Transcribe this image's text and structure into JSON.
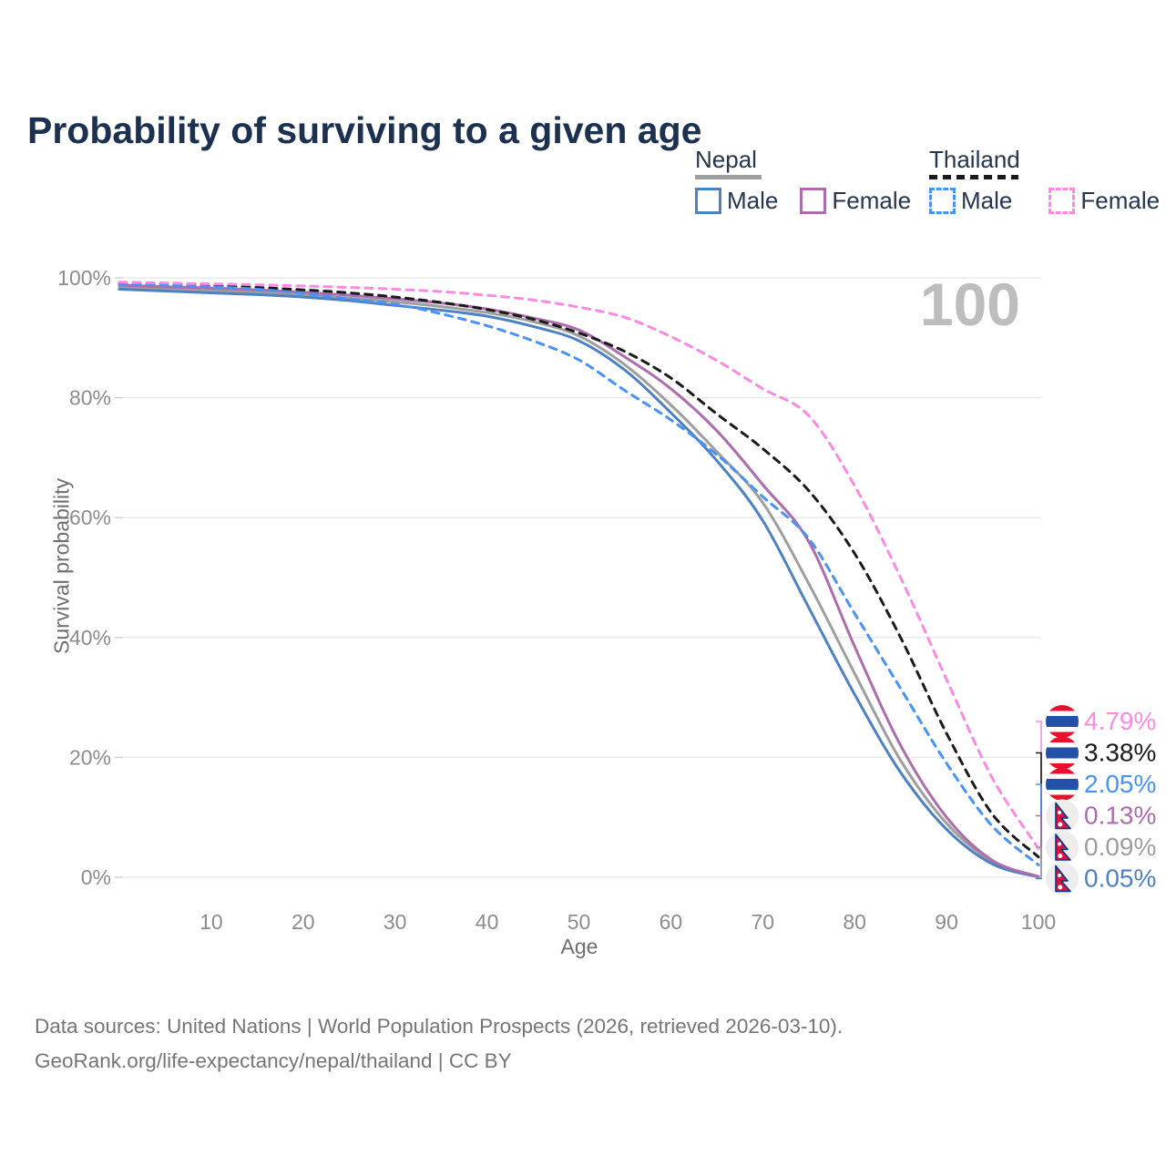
{
  "title": "Probability of surviving to a given age",
  "watermark": "100",
  "legend": {
    "groups": [
      {
        "country": "Nepal",
        "line_style": "solid",
        "underline_color": "#9e9e9e",
        "items": [
          {
            "label": "Male",
            "color": "#4e81c2"
          },
          {
            "label": "Female",
            "color": "#ad6cad"
          }
        ]
      },
      {
        "country": "Thailand",
        "line_style": "dashed",
        "underline_color": "#1a1a1a",
        "items": [
          {
            "label": "Male",
            "color": "#4893f5"
          },
          {
            "label": "Female",
            "color": "#fb8ae2"
          }
        ]
      }
    ]
  },
  "chart_data": {
    "type": "line",
    "title": "Probability of surviving to a given age",
    "xlabel": "Age",
    "ylabel": "Survival probability",
    "xlim": [
      0,
      100
    ],
    "ylim": [
      0,
      100
    ],
    "grid": "horizontal",
    "legend_position": "top-right",
    "x_ticks": [
      10,
      20,
      30,
      40,
      50,
      60,
      70,
      80,
      90,
      100
    ],
    "y_ticks": [
      {
        "value": 0,
        "label": "0%"
      },
      {
        "value": 20,
        "label": "20%"
      },
      {
        "value": 40,
        "label": "40%"
      },
      {
        "value": 60,
        "label": "60%"
      },
      {
        "value": 80,
        "label": "80%"
      },
      {
        "value": 100,
        "label": "100%"
      }
    ],
    "x": [
      0,
      5,
      10,
      15,
      20,
      25,
      30,
      35,
      40,
      45,
      50,
      55,
      60,
      65,
      70,
      75,
      80,
      85,
      90,
      95,
      100
    ],
    "series": [
      {
        "name": "Nepal Both sexes",
        "country": "Nepal",
        "sex": "both",
        "color": "#9e9e9e",
        "dashed": false,
        "flag": "nepal",
        "end_label": "0.09%",
        "values": [
          98.5,
          98.1,
          97.9,
          97.6,
          97.2,
          96.6,
          96.0,
          95.2,
          94.2,
          92.7,
          90.3,
          85.5,
          78.8,
          71.0,
          62.5,
          49.0,
          34.0,
          19.5,
          9.0,
          2.6,
          0.09
        ]
      },
      {
        "name": "Nepal Male",
        "country": "Nepal",
        "sex": "male",
        "color": "#4e81c2",
        "dashed": false,
        "flag": "nepal",
        "end_label": "0.05%",
        "values": [
          98.1,
          97.8,
          97.5,
          97.2,
          96.8,
          96.2,
          95.4,
          94.6,
          93.6,
          91.9,
          89.5,
          84.6,
          77.5,
          69.5,
          59.5,
          45.0,
          30.5,
          17.5,
          8.0,
          2.2,
          0.05
        ]
      },
      {
        "name": "Nepal Female",
        "country": "Nepal",
        "sex": "female",
        "color": "#ad6cad",
        "dashed": false,
        "flag": "nepal",
        "end_label": "0.13%",
        "values": [
          98.8,
          98.5,
          98.3,
          98.0,
          97.6,
          97.1,
          96.5,
          95.8,
          94.8,
          93.3,
          91.3,
          86.8,
          81.5,
          74.5,
          65.5,
          56.0,
          38.5,
          22.0,
          10.0,
          2.8,
          0.13
        ]
      },
      {
        "name": "Thailand Both sexes",
        "country": "Thailand",
        "sex": "both",
        "color": "#1a1a1a",
        "dashed": true,
        "flag": "thailand",
        "end_label": "3.38%",
        "values": [
          99.1,
          98.9,
          98.7,
          98.4,
          98.0,
          97.5,
          96.8,
          95.9,
          94.7,
          93.1,
          90.8,
          87.7,
          83.3,
          77.3,
          71.5,
          64.5,
          54.0,
          40.0,
          24.0,
          10.5,
          3.38
        ]
      },
      {
        "name": "Thailand Male",
        "country": "Thailand",
        "sex": "male",
        "color": "#4893f5",
        "dashed": true,
        "flag": "thailand",
        "end_label": "2.05%",
        "values": [
          99.0,
          98.8,
          98.5,
          98.1,
          97.4,
          96.5,
          95.6,
          94.0,
          92.0,
          89.5,
          86.3,
          81.2,
          76.3,
          70.5,
          63.5,
          56.5,
          44.0,
          31.5,
          19.0,
          8.5,
          2.05
        ]
      },
      {
        "name": "Thailand Female",
        "country": "Thailand",
        "sex": "female",
        "color": "#fb8ae2",
        "dashed": true,
        "flag": "thailand",
        "end_label": "4.79%",
        "values": [
          99.3,
          99.15,
          99.0,
          98.85,
          98.65,
          98.4,
          98.1,
          97.7,
          97.1,
          96.3,
          95.1,
          93.4,
          90.2,
          86.2,
          81.5,
          77.0,
          65.3,
          50.0,
          33.0,
          16.5,
          4.79
        ]
      }
    ]
  },
  "flag_colors": {
    "thailand_red": "#e8112d",
    "thailand_blue": "#2350a9",
    "nepal_red": "#dc143c",
    "nepal_blue": "#003893"
  },
  "footer": {
    "line1": "Data sources: United Nations | World Population Prospects (2026, retrieved 2026-03-10).",
    "line2": "GeoRank.org/life-expectancy/nepal/thailand | CC BY"
  }
}
